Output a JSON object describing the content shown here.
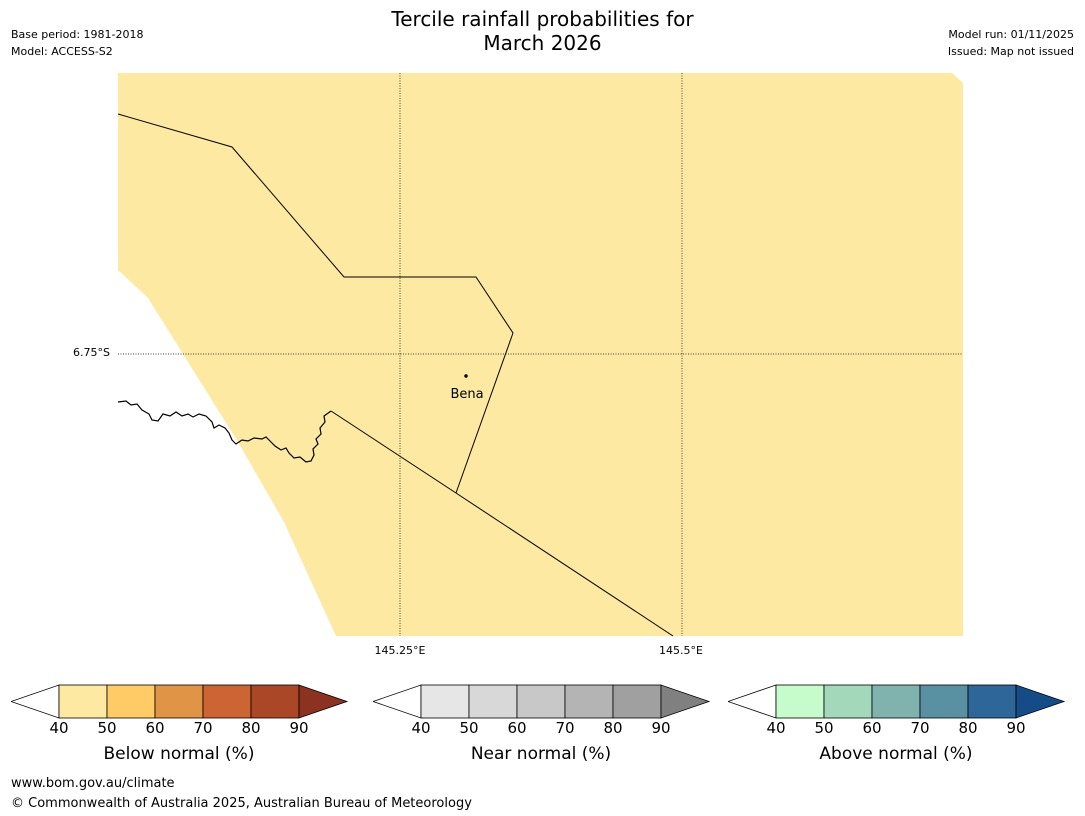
{
  "title": {
    "line1": "Tercile rainfall probabilities for",
    "line2": "March 2026"
  },
  "meta": {
    "base_period": "Base period: 1981-2018",
    "model": "Model: ACCESS-S2",
    "model_run": "Model run: 01/11/2025",
    "issued": "Issued: Map not issued"
  },
  "map": {
    "fill_color": "#FEE9A3",
    "place": "Bena",
    "lat_label": "6.75°S",
    "lon_labels": [
      "145.25°E",
      "145.5°E"
    ]
  },
  "legends": [
    {
      "label": "Below normal (%)",
      "ticks": [
        "40",
        "50",
        "60",
        "70",
        "80",
        "90"
      ],
      "colors": [
        "#FFFFFF",
        "#FEE9A3",
        "#FECB67",
        "#E09446",
        "#CC6533",
        "#AA4727",
        "#8B3221"
      ]
    },
    {
      "label": "Near normal (%)",
      "ticks": [
        "40",
        "50",
        "60",
        "70",
        "80",
        "90"
      ],
      "colors": [
        "#FFFFFF",
        "#E6E6E6",
        "#D8D8D8",
        "#C8C8C8",
        "#B4B4B4",
        "#A0A0A0",
        "#808080"
      ]
    },
    {
      "label": "Above normal (%)",
      "ticks": [
        "40",
        "50",
        "60",
        "70",
        "80",
        "90"
      ],
      "colors": [
        "#FFFFFF",
        "#C6FBCC",
        "#A3D9BA",
        "#80B3AE",
        "#5A91A2",
        "#2F6699",
        "#154B86"
      ]
    }
  ],
  "footer": {
    "url": "www.bom.gov.au/climate",
    "copyright": "© Commonwealth of Australia 2025, Australian Bureau of Meteorology"
  }
}
